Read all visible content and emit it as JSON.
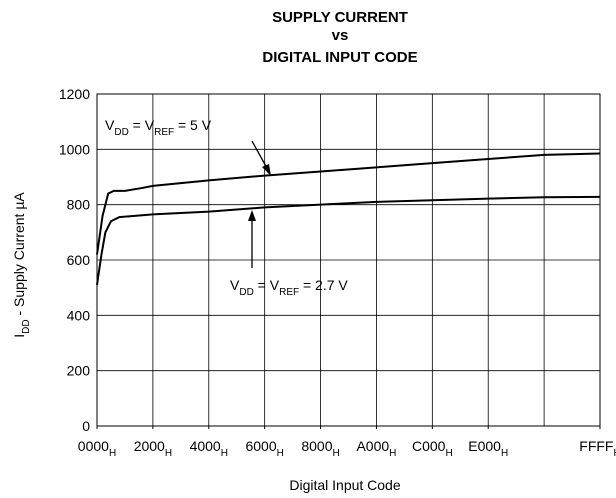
{
  "chart_data": {
    "type": "line",
    "title": [
      "SUPPLY CURRENT",
      "vs",
      "DIGITAL INPUT CODE"
    ],
    "x_label": "Digital Input Code",
    "y_label": [
      {
        "text": "I"
      },
      {
        "text": "DD",
        "sub": true
      },
      {
        "text": "  - Supply Current    µA"
      }
    ],
    "xlim": [
      0,
      9
    ],
    "xticks": [
      {
        "value": 0,
        "label": "0000",
        "sub": "H"
      },
      {
        "value": 1,
        "label": "2000",
        "sub": "H"
      },
      {
        "value": 2,
        "label": "4000",
        "sub": "H"
      },
      {
        "value": 3,
        "label": "6000",
        "sub": "H"
      },
      {
        "value": 4,
        "label": "8000",
        "sub": "H"
      },
      {
        "value": 5,
        "label": "A000",
        "sub": "H"
      },
      {
        "value": 6,
        "label": "C000",
        "sub": "H"
      },
      {
        "value": 7,
        "label": "E000",
        "sub": "H"
      },
      {
        "value": 9,
        "label": "FFFF",
        "sub": "H"
      }
    ],
    "xgrid": [
      1,
      2,
      3,
      4,
      5,
      6,
      7,
      8
    ],
    "ylim": [
      0,
      1200
    ],
    "yticks": [
      0,
      200,
      400,
      600,
      800,
      1000,
      1200
    ],
    "grid": true,
    "series": [
      {
        "name": [
          {
            "text": "V"
          },
          {
            "text": "DD",
            "sub": true
          },
          {
            "text": " = V"
          },
          {
            "text": "REF",
            "sub": true
          },
          {
            "text": " = 5 V"
          }
        ],
        "color": "#000000",
        "x": [
          0,
          0.1,
          0.2,
          0.3,
          0.5,
          0.8,
          1,
          2,
          3,
          4,
          5,
          6,
          7,
          8,
          9
        ],
        "values": [
          620,
          760,
          840,
          850,
          850,
          860,
          868,
          888,
          905,
          920,
          935,
          950,
          965,
          980,
          985
        ]
      },
      {
        "name": [
          {
            "text": "V"
          },
          {
            "text": "DD",
            "sub": true
          },
          {
            "text": " = V"
          },
          {
            "text": "REF",
            "sub": true
          },
          {
            "text": " = 2.7 V"
          }
        ],
        "color": "#000000",
        "x": [
          0,
          0.08,
          0.15,
          0.25,
          0.4,
          1,
          2,
          3,
          4,
          5,
          6,
          7,
          8,
          9
        ],
        "values": [
          510,
          620,
          700,
          740,
          755,
          765,
          775,
          790,
          800,
          810,
          816,
          822,
          827,
          828
        ]
      }
    ]
  }
}
